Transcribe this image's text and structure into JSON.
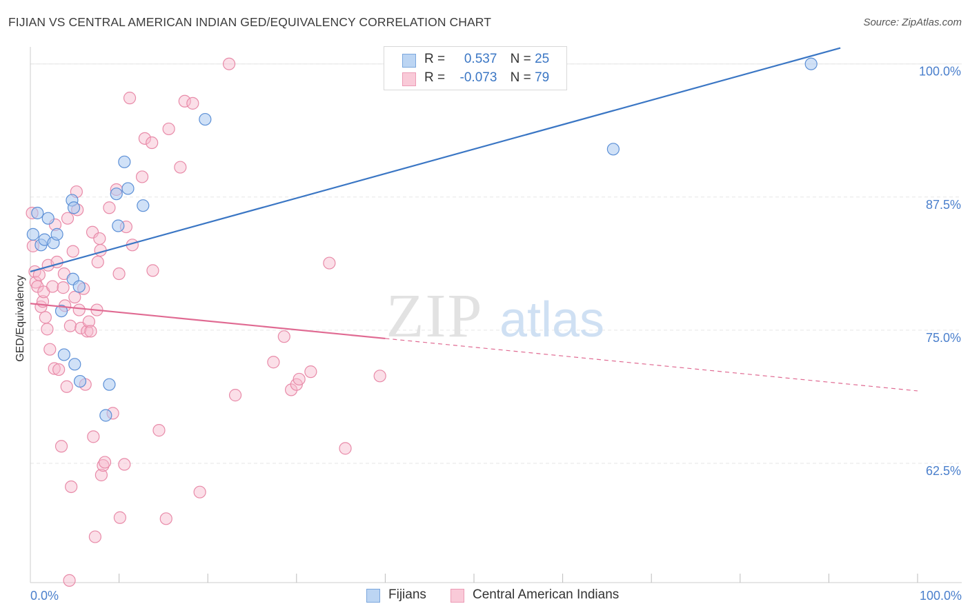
{
  "header": {
    "title": "FIJIAN VS CENTRAL AMERICAN INDIAN GED/EQUIVALENCY CORRELATION CHART",
    "source": "Source: ZipAtlas.com"
  },
  "legend": {
    "series": [
      {
        "r_label": "R =",
        "r_value": "0.537",
        "n_label": "N =",
        "n_value": "25"
      },
      {
        "r_label": "R =",
        "r_value": "-0.073",
        "n_label": "N =",
        "n_value": "79"
      }
    ]
  },
  "bottom_legend": {
    "fijians": "Fijians",
    "central": "Central American Indians"
  },
  "watermark": {
    "zip": "ZIP",
    "atlas": "atlas"
  },
  "colors": {
    "blue_fill": "#a9c8f0",
    "blue_stroke": "#5b8fd6",
    "blue_line": "#3a76c4",
    "pink_fill": "#f7b8cb",
    "pink_stroke": "#e88aa8",
    "pink_line": "#e06a92",
    "grid": "#e6e6e6",
    "axis_text": "#4a7fcc"
  },
  "chart_data": {
    "type": "scatter",
    "title": "FIJIAN VS CENTRAL AMERICAN INDIAN GED/EQUIVALENCY CORRELATION CHART",
    "xlabel": "",
    "ylabel": "GED/Equivalency",
    "xlim": [
      0,
      100
    ],
    "ylim": [
      51.3,
      101.6
    ],
    "x_tick_labels": [
      "0.0%",
      "100.0%"
    ],
    "y_ticks": [
      62.5,
      75.0,
      87.5,
      100.0
    ],
    "y_tick_labels": [
      "62.5%",
      "75.0%",
      "87.5%",
      "100.0%"
    ],
    "grid": true,
    "series": [
      {
        "name": "Fijians",
        "r": 0.537,
        "n": 25,
        "trend": {
          "x": [
            0,
            91.3
          ],
          "y": [
            80.5,
            101.5
          ]
        },
        "points": [
          [
            0.3,
            84.0
          ],
          [
            0.8,
            86.0
          ],
          [
            1.2,
            83.0
          ],
          [
            1.6,
            83.5
          ],
          [
            2.0,
            85.5
          ],
          [
            2.6,
            83.2
          ],
          [
            3.0,
            84.0
          ],
          [
            3.5,
            76.8
          ],
          [
            3.8,
            72.7
          ],
          [
            4.7,
            87.2
          ],
          [
            4.9,
            86.5
          ],
          [
            5.0,
            71.8
          ],
          [
            4.8,
            79.8
          ],
          [
            5.5,
            79.1
          ],
          [
            5.6,
            70.2
          ],
          [
            8.5,
            67.0
          ],
          [
            8.9,
            69.9
          ],
          [
            9.7,
            87.8
          ],
          [
            9.9,
            84.8
          ],
          [
            10.6,
            90.8
          ],
          [
            11.0,
            88.3
          ],
          [
            12.7,
            86.7
          ],
          [
            19.7,
            94.8
          ],
          [
            65.7,
            92.0
          ],
          [
            88.0,
            100.0
          ]
        ]
      },
      {
        "name": "Central American Indians",
        "r": -0.073,
        "n": 79,
        "trend": {
          "x": [
            0,
            100
          ],
          "y": [
            77.5,
            69.3
          ],
          "solid_until_x": 40.0
        },
        "points": [
          [
            0.2,
            86.0
          ],
          [
            0.3,
            82.9
          ],
          [
            0.5,
            80.5
          ],
          [
            0.6,
            79.5
          ],
          [
            0.8,
            79.1
          ],
          [
            1.0,
            80.2
          ],
          [
            1.2,
            77.2
          ],
          [
            1.4,
            77.7
          ],
          [
            1.5,
            78.6
          ],
          [
            1.7,
            76.2
          ],
          [
            1.9,
            75.1
          ],
          [
            2.0,
            81.1
          ],
          [
            2.2,
            73.2
          ],
          [
            2.5,
            79.1
          ],
          [
            2.7,
            71.4
          ],
          [
            2.8,
            84.9
          ],
          [
            3.0,
            81.4
          ],
          [
            3.2,
            71.3
          ],
          [
            3.5,
            64.1
          ],
          [
            3.7,
            79.0
          ],
          [
            3.8,
            80.3
          ],
          [
            3.9,
            77.3
          ],
          [
            4.1,
            69.7
          ],
          [
            4.2,
            85.5
          ],
          [
            4.4,
            51.5
          ],
          [
            4.5,
            75.4
          ],
          [
            4.6,
            60.3
          ],
          [
            4.8,
            82.4
          ],
          [
            5.0,
            78.1
          ],
          [
            5.2,
            88.0
          ],
          [
            5.3,
            86.3
          ],
          [
            5.5,
            76.9
          ],
          [
            5.7,
            75.2
          ],
          [
            6.0,
            78.9
          ],
          [
            6.2,
            69.9
          ],
          [
            6.4,
            74.9
          ],
          [
            6.6,
            75.8
          ],
          [
            6.8,
            74.9
          ],
          [
            7.0,
            84.2
          ],
          [
            7.1,
            65.0
          ],
          [
            7.3,
            55.6
          ],
          [
            7.5,
            76.9
          ],
          [
            7.6,
            81.4
          ],
          [
            7.8,
            83.6
          ],
          [
            7.9,
            82.5
          ],
          [
            8.0,
            61.4
          ],
          [
            8.2,
            62.3
          ],
          [
            8.4,
            62.6
          ],
          [
            8.9,
            86.5
          ],
          [
            9.3,
            67.2
          ],
          [
            9.7,
            88.2
          ],
          [
            10.0,
            80.3
          ],
          [
            10.1,
            57.4
          ],
          [
            10.6,
            62.4
          ],
          [
            10.8,
            84.7
          ],
          [
            11.2,
            96.8
          ],
          [
            11.5,
            83.0
          ],
          [
            12.6,
            89.4
          ],
          [
            12.9,
            93.0
          ],
          [
            13.7,
            92.6
          ],
          [
            13.8,
            80.6
          ],
          [
            14.5,
            65.6
          ],
          [
            15.3,
            57.3
          ],
          [
            15.6,
            93.9
          ],
          [
            16.9,
            90.3
          ],
          [
            17.4,
            96.5
          ],
          [
            18.3,
            96.3
          ],
          [
            19.1,
            59.8
          ],
          [
            22.4,
            100.0
          ],
          [
            23.1,
            68.9
          ],
          [
            27.4,
            72.0
          ],
          [
            28.6,
            74.4
          ],
          [
            29.4,
            69.4
          ],
          [
            30.0,
            69.9
          ],
          [
            30.3,
            70.4
          ],
          [
            31.6,
            71.1
          ],
          [
            33.7,
            81.3
          ],
          [
            35.5,
            63.9
          ],
          [
            39.4,
            70.7
          ]
        ]
      }
    ]
  }
}
